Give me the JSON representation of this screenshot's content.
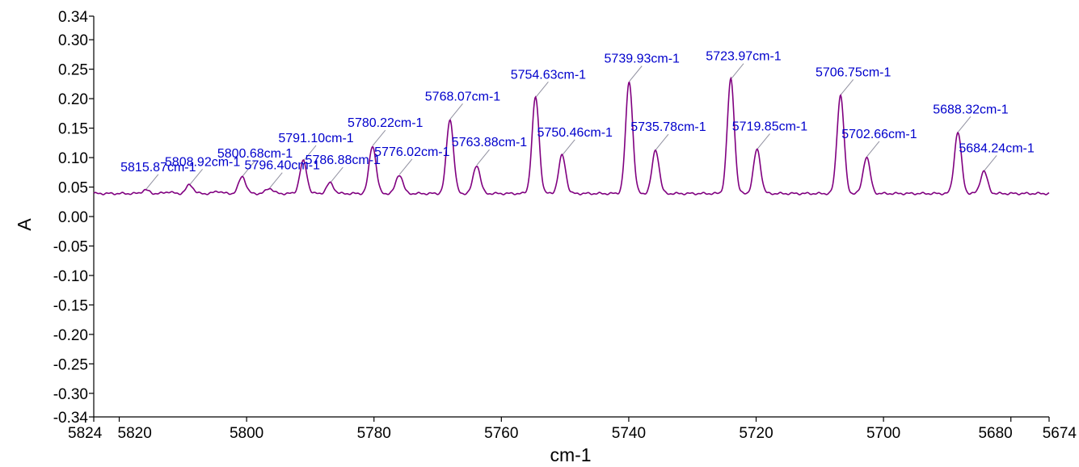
{
  "chart_data": {
    "type": "line",
    "title": "",
    "xlabel": "cm-1",
    "ylabel": "A",
    "x_reversed": true,
    "xlim": [
      5824,
      5674
    ],
    "ylim": [
      -0.34,
      0.34
    ],
    "grid": false,
    "legend": "none",
    "colors": {
      "line": "#800080",
      "label": "#0000cc",
      "leader": "#9090a0",
      "axis": "#000000"
    },
    "x_ticks": [
      {
        "value": 5824,
        "label": "5824"
      },
      {
        "value": 5820,
        "label": "5820"
      },
      {
        "value": 5800,
        "label": "5800"
      },
      {
        "value": 5780,
        "label": "5780"
      },
      {
        "value": 5760,
        "label": "5760"
      },
      {
        "value": 5740,
        "label": "5740"
      },
      {
        "value": 5720,
        "label": "5720"
      },
      {
        "value": 5700,
        "label": "5700"
      },
      {
        "value": 5680,
        "label": "5680"
      },
      {
        "value": 5674,
        "label": "5674"
      }
    ],
    "y_ticks": [
      {
        "value": 0.34,
        "label": "0.34"
      },
      {
        "value": 0.3,
        "label": "0.30"
      },
      {
        "value": 0.25,
        "label": "0.25"
      },
      {
        "value": 0.2,
        "label": "0.20"
      },
      {
        "value": 0.15,
        "label": "0.15"
      },
      {
        "value": 0.1,
        "label": "0.10"
      },
      {
        "value": 0.05,
        "label": "0.05"
      },
      {
        "value": 0.0,
        "label": "0.00"
      },
      {
        "value": -0.05,
        "label": "-0.05"
      },
      {
        "value": -0.1,
        "label": "-0.10"
      },
      {
        "value": -0.15,
        "label": "-0.15"
      },
      {
        "value": -0.2,
        "label": "-0.20"
      },
      {
        "value": -0.25,
        "label": "-0.25"
      },
      {
        "value": -0.3,
        "label": "-0.30"
      },
      {
        "value": -0.34,
        "label": "-0.34"
      }
    ],
    "baseline": 0.039,
    "peaks": [
      {
        "x": 5815.87,
        "y": 0.045,
        "label": "5815.87cm-1"
      },
      {
        "x": 5808.92,
        "y": 0.054,
        "label": "5808.92cm-1"
      },
      {
        "x": 5800.68,
        "y": 0.068,
        "label": "5800.68cm-1"
      },
      {
        "x": 5796.4,
        "y": 0.048,
        "label": "5796.40cm-1"
      },
      {
        "x": 5791.1,
        "y": 0.094,
        "label": "5791.10cm-1"
      },
      {
        "x": 5786.88,
        "y": 0.057,
        "label": "5786.88cm-1"
      },
      {
        "x": 5780.22,
        "y": 0.12,
        "label": "5780.22cm-1"
      },
      {
        "x": 5776.02,
        "y": 0.071,
        "label": "5776.02cm-1"
      },
      {
        "x": 5768.07,
        "y": 0.165,
        "label": "5768.07cm-1"
      },
      {
        "x": 5763.88,
        "y": 0.087,
        "label": "5763.88cm-1"
      },
      {
        "x": 5754.63,
        "y": 0.202,
        "label": "5754.63cm-1"
      },
      {
        "x": 5750.46,
        "y": 0.104,
        "label": "5750.46cm-1"
      },
      {
        "x": 5739.93,
        "y": 0.229,
        "label": "5739.93cm-1"
      },
      {
        "x": 5735.78,
        "y": 0.113,
        "label": "5735.78cm-1"
      },
      {
        "x": 5723.97,
        "y": 0.233,
        "label": "5723.97cm-1"
      },
      {
        "x": 5719.85,
        "y": 0.114,
        "label": "5719.85cm-1"
      },
      {
        "x": 5706.75,
        "y": 0.206,
        "label": "5706.75cm-1"
      },
      {
        "x": 5702.66,
        "y": 0.101,
        "label": "5702.66cm-1"
      },
      {
        "x": 5688.32,
        "y": 0.143,
        "label": "5688.32cm-1"
      },
      {
        "x": 5684.24,
        "y": 0.077,
        "label": "5684.24cm-1"
      }
    ],
    "small_bumps": [
      {
        "x": 5804.5,
        "y": 0.043
      },
      {
        "x": 5812.3,
        "y": 0.042
      }
    ]
  }
}
